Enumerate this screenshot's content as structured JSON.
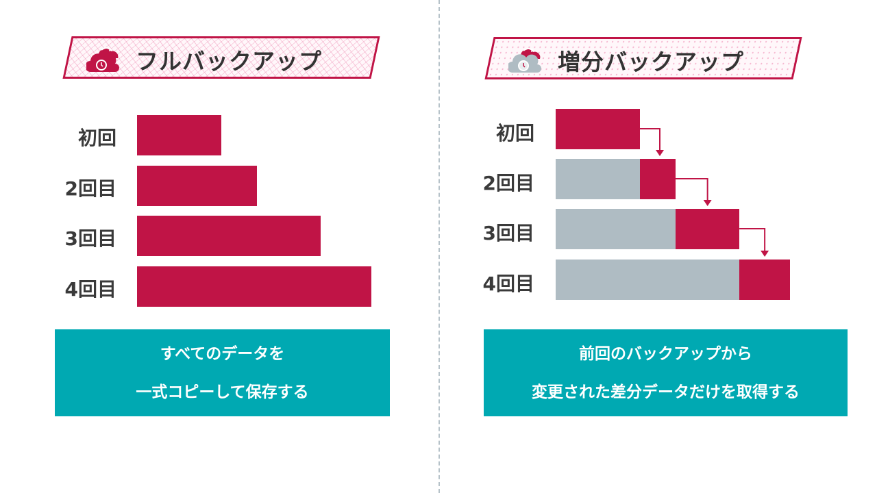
{
  "colors": {
    "accent": "#c01446",
    "previous": "#afbcc3",
    "note": "#00a9b2"
  },
  "full": {
    "title": "フルバックアップ",
    "icon": "cloud-backup-clock-icon",
    "rows": [
      {
        "label": "初回",
        "size": 5
      },
      {
        "label": "2回目",
        "size": 7.1
      },
      {
        "label": "3回目",
        "size": 10.9
      },
      {
        "label": "4回目",
        "size": 13.9
      }
    ],
    "note": [
      "すべてのデータを",
      "一式コピーして保存する"
    ]
  },
  "incremental": {
    "title": "増分バックアップ",
    "icon": "cloud-backup-clock-icon",
    "rows": [
      {
        "label": "初回",
        "increment": 5
      },
      {
        "label": "2回目",
        "increment": 2.1
      },
      {
        "label": "3回目",
        "increment": 3.8
      },
      {
        "label": "4回目",
        "increment": 3
      }
    ],
    "note": [
      "前回のバックアップから",
      "変更された差分データだけを取得する"
    ]
  }
}
